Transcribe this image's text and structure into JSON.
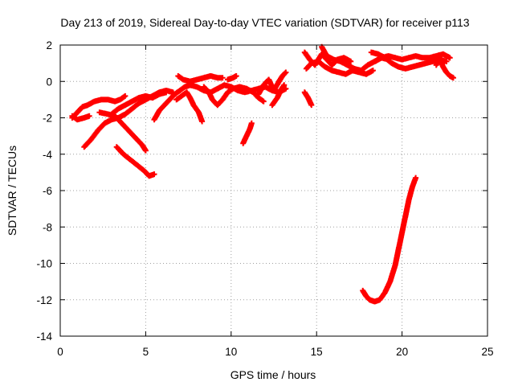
{
  "chart_data": {
    "type": "scatter",
    "title": "Day 213 of 2019, Sidereal Day-to-day VTEC variation (SDTVAR) for receiver p113",
    "xlabel": "GPS time / hours",
    "ylabel": "SDTVAR / TECUs",
    "xlim": [
      0,
      25
    ],
    "ylim": [
      -14,
      2
    ],
    "xticks": [
      0,
      5,
      10,
      15,
      20,
      25
    ],
    "yticks": [
      -14,
      -12,
      -10,
      -8,
      -6,
      -4,
      -2,
      0,
      2
    ],
    "grid": true,
    "marker": "plus",
    "color": "#ff0000",
    "series": [
      {
        "name": "track-1",
        "points": [
          [
            0.7,
            -2.0
          ],
          [
            1.0,
            -1.7
          ],
          [
            1.3,
            -1.4
          ],
          [
            1.6,
            -1.3
          ],
          [
            2.0,
            -1.1
          ],
          [
            2.4,
            -1.0
          ],
          [
            2.8,
            -1.0
          ],
          [
            3.2,
            -1.1
          ],
          [
            3.5,
            -1.0
          ],
          [
            3.8,
            -0.8
          ]
        ]
      },
      {
        "name": "track-2",
        "points": [
          [
            0.7,
            -1.9
          ],
          [
            1.0,
            -2.1
          ],
          [
            1.4,
            -2.0
          ],
          [
            1.7,
            -1.9
          ]
        ]
      },
      {
        "name": "track-3",
        "points": [
          [
            1.4,
            -3.6
          ],
          [
            1.8,
            -3.2
          ],
          [
            2.2,
            -2.7
          ],
          [
            2.6,
            -2.3
          ],
          [
            3.0,
            -2.1
          ],
          [
            3.4,
            -2.0
          ],
          [
            3.8,
            -1.8
          ],
          [
            4.2,
            -1.5
          ],
          [
            4.6,
            -1.2
          ],
          [
            5.0,
            -1.0
          ],
          [
            5.4,
            -0.8
          ],
          [
            5.8,
            -0.6
          ],
          [
            6.2,
            -0.5
          ],
          [
            6.6,
            -0.6
          ]
        ]
      },
      {
        "name": "track-4",
        "points": [
          [
            2.3,
            -1.7
          ],
          [
            2.8,
            -1.8
          ],
          [
            3.2,
            -1.9
          ],
          [
            3.6,
            -2.3
          ],
          [
            4.0,
            -2.7
          ],
          [
            4.4,
            -3.1
          ],
          [
            4.8,
            -3.5
          ],
          [
            5.0,
            -3.8
          ]
        ]
      },
      {
        "name": "track-5",
        "points": [
          [
            3.3,
            -3.6
          ],
          [
            3.7,
            -4.0
          ],
          [
            4.1,
            -4.3
          ],
          [
            4.5,
            -4.6
          ],
          [
            4.9,
            -4.9
          ],
          [
            5.2,
            -5.2
          ],
          [
            5.5,
            -5.1
          ]
        ]
      },
      {
        "name": "track-6",
        "points": [
          [
            3.0,
            -1.8
          ],
          [
            3.4,
            -1.5
          ],
          [
            3.8,
            -1.3
          ],
          [
            4.2,
            -1.1
          ],
          [
            4.6,
            -0.9
          ],
          [
            5.0,
            -0.8
          ],
          [
            5.4,
            -0.9
          ],
          [
            5.8,
            -0.7
          ],
          [
            6.2,
            -0.6
          ]
        ]
      },
      {
        "name": "track-7",
        "points": [
          [
            5.5,
            -2.1
          ],
          [
            5.8,
            -1.6
          ],
          [
            6.1,
            -1.3
          ],
          [
            6.4,
            -1.0
          ],
          [
            6.7,
            -0.7
          ],
          [
            7.0,
            -0.5
          ],
          [
            7.3,
            -0.3
          ],
          [
            7.6,
            -0.2
          ],
          [
            8.0,
            -0.3
          ],
          [
            8.4,
            -0.5
          ],
          [
            8.8,
            -0.6
          ],
          [
            9.2,
            -0.4
          ],
          [
            9.6,
            -0.2
          ],
          [
            10.0,
            -0.3
          ],
          [
            10.4,
            -0.5
          ],
          [
            10.8,
            -0.6
          ],
          [
            11.2,
            -0.5
          ],
          [
            11.6,
            -0.4
          ],
          [
            12.0,
            -0.3
          ],
          [
            12.4,
            -0.5
          ],
          [
            12.8,
            -0.6
          ],
          [
            13.2,
            -0.4
          ]
        ]
      },
      {
        "name": "track-8",
        "points": [
          [
            6.8,
            -1.0
          ],
          [
            7.1,
            -0.8
          ],
          [
            7.4,
            -0.6
          ],
          [
            7.6,
            -0.9
          ],
          [
            7.8,
            -1.3
          ],
          [
            8.1,
            -1.7
          ],
          [
            8.3,
            -2.2
          ]
        ]
      },
      {
        "name": "track-9",
        "points": [
          [
            6.9,
            0.3
          ],
          [
            7.2,
            0.1
          ],
          [
            7.6,
            0.0
          ],
          [
            8.0,
            0.1
          ],
          [
            8.4,
            0.2
          ],
          [
            8.8,
            0.3
          ],
          [
            9.2,
            0.2
          ],
          [
            9.5,
            0.2
          ]
        ]
      },
      {
        "name": "track-10",
        "points": [
          [
            8.4,
            -0.3
          ],
          [
            8.7,
            -0.6
          ],
          [
            8.9,
            -1.0
          ],
          [
            9.2,
            -1.3
          ],
          [
            9.5,
            -1.0
          ],
          [
            9.8,
            -0.6
          ],
          [
            10.1,
            -0.4
          ],
          [
            10.5,
            -0.3
          ],
          [
            10.9,
            -0.4
          ],
          [
            11.3,
            -0.6
          ],
          [
            11.6,
            -0.9
          ],
          [
            11.9,
            -1.1
          ]
        ]
      },
      {
        "name": "track-11",
        "points": [
          [
            9.8,
            0.1
          ],
          [
            10.1,
            0.2
          ],
          [
            10.3,
            0.3
          ]
        ]
      },
      {
        "name": "track-12",
        "points": [
          [
            10.7,
            -3.4
          ],
          [
            10.9,
            -3.0
          ],
          [
            11.1,
            -2.6
          ],
          [
            11.2,
            -2.3
          ]
        ]
      },
      {
        "name": "track-13",
        "points": [
          [
            11.6,
            -0.7
          ],
          [
            11.9,
            -0.2
          ],
          [
            12.2,
            0.1
          ],
          [
            12.5,
            -0.5
          ],
          [
            12.8,
            0.0
          ],
          [
            13.0,
            0.3
          ],
          [
            13.2,
            0.5
          ]
        ]
      },
      {
        "name": "track-14",
        "points": [
          [
            12.4,
            -1.3
          ],
          [
            12.7,
            -0.9
          ],
          [
            12.9,
            -0.5
          ],
          [
            13.1,
            -0.2
          ]
        ]
      },
      {
        "name": "track-15",
        "points": [
          [
            14.3,
            -0.6
          ],
          [
            14.5,
            -0.9
          ],
          [
            14.7,
            -1.3
          ]
        ]
      },
      {
        "name": "track-16",
        "points": [
          [
            14.3,
            1.6
          ],
          [
            14.6,
            1.2
          ],
          [
            14.9,
            0.9
          ],
          [
            15.3,
            1.5
          ],
          [
            15.6,
            1.2
          ],
          [
            15.9,
            0.9
          ],
          [
            16.2,
            1.2
          ],
          [
            16.6,
            1.3
          ],
          [
            17.0,
            1.1
          ]
        ]
      },
      {
        "name": "track-17",
        "points": [
          [
            14.4,
            0.7
          ],
          [
            14.7,
            1.0
          ],
          [
            15.1,
            1.1
          ],
          [
            15.5,
            0.8
          ],
          [
            15.9,
            0.6
          ],
          [
            16.3,
            0.5
          ],
          [
            16.7,
            0.4
          ],
          [
            17.1,
            0.6
          ],
          [
            17.5,
            0.5
          ],
          [
            17.9,
            0.4
          ],
          [
            18.3,
            0.6
          ]
        ]
      },
      {
        "name": "track-18",
        "points": [
          [
            15.3,
            1.9
          ],
          [
            15.6,
            1.4
          ],
          [
            16.0,
            1.2
          ],
          [
            16.4,
            1.1
          ],
          [
            16.8,
            0.9
          ],
          [
            17.2,
            0.7
          ],
          [
            17.6,
            0.6
          ],
          [
            18.0,
            0.9
          ],
          [
            18.4,
            1.1
          ],
          [
            18.8,
            1.3
          ],
          [
            19.2,
            1.2
          ]
        ]
      },
      {
        "name": "track-19",
        "points": [
          [
            18.2,
            1.6
          ],
          [
            18.6,
            1.5
          ],
          [
            19.0,
            1.3
          ],
          [
            19.4,
            1.0
          ],
          [
            19.8,
            0.8
          ],
          [
            20.2,
            0.7
          ],
          [
            20.6,
            0.8
          ],
          [
            21.0,
            0.9
          ],
          [
            21.4,
            1.0
          ],
          [
            21.8,
            1.1
          ],
          [
            22.2,
            1.2
          ],
          [
            22.6,
            1.1
          ]
        ]
      },
      {
        "name": "track-20",
        "points": [
          [
            18.4,
            1.1
          ],
          [
            18.8,
            1.3
          ],
          [
            19.2,
            1.4
          ],
          [
            19.6,
            1.3
          ],
          [
            20.0,
            1.2
          ],
          [
            20.4,
            1.3
          ],
          [
            20.8,
            1.4
          ],
          [
            21.2,
            1.3
          ],
          [
            21.6,
            1.3
          ],
          [
            22.0,
            1.4
          ],
          [
            22.4,
            1.5
          ],
          [
            22.8,
            1.3
          ]
        ]
      },
      {
        "name": "track-21",
        "points": [
          [
            22.0,
            0.9
          ],
          [
            22.2,
            1.3
          ],
          [
            22.4,
            0.8
          ],
          [
            22.6,
            0.5
          ],
          [
            22.8,
            0.3
          ],
          [
            23.0,
            0.2
          ]
        ]
      },
      {
        "name": "track-22",
        "points": [
          [
            17.7,
            -11.5
          ],
          [
            17.9,
            -11.8
          ],
          [
            18.1,
            -12.0
          ],
          [
            18.4,
            -12.1
          ],
          [
            18.7,
            -12.0
          ],
          [
            19.0,
            -11.6
          ],
          [
            19.3,
            -11.0
          ],
          [
            19.6,
            -10.1
          ],
          [
            19.8,
            -9.2
          ],
          [
            20.0,
            -8.3
          ],
          [
            20.2,
            -7.4
          ],
          [
            20.4,
            -6.5
          ],
          [
            20.6,
            -5.8
          ],
          [
            20.8,
            -5.3
          ]
        ]
      }
    ]
  }
}
